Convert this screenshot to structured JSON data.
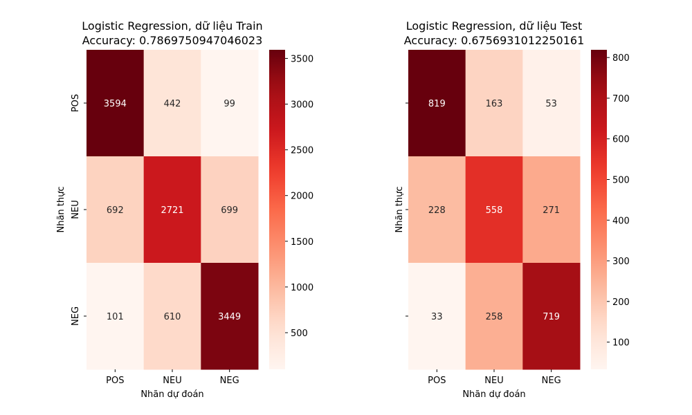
{
  "chart_data": [
    {
      "type": "heatmap",
      "title": "Logistic Regression, dữ liệu Train",
      "subtitle": "Accuracy: 0.7869750947046023",
      "xlabel": "Nhãn dự đoán",
      "ylabel": "Nhãn thực",
      "x_categories": [
        "POS",
        "NEU",
        "NEG"
      ],
      "y_categories": [
        "POS",
        "NEU",
        "NEG"
      ],
      "show_y_tick_labels": true,
      "values": [
        [
          3594,
          442,
          99
        ],
        [
          692,
          2721,
          699
        ],
        [
          101,
          610,
          3449
        ]
      ],
      "colorbar": {
        "colormap": "Reds",
        "range": [
          99,
          3594
        ],
        "ticks": [
          500,
          1000,
          1500,
          2000,
          2500,
          3000,
          3500
        ]
      }
    },
    {
      "type": "heatmap",
      "title": "Logistic Regression, dữ liệu Test",
      "subtitle": "Accuracy: 0.6756931012250161",
      "xlabel": "Nhãn dự đoán",
      "ylabel": "Nhãn thực",
      "x_categories": [
        "POS",
        "NEU",
        "NEG"
      ],
      "y_categories": [
        "POS",
        "NEU",
        "NEG"
      ],
      "show_y_tick_labels": false,
      "values": [
        [
          819,
          163,
          53
        ],
        [
          228,
          558,
          271
        ],
        [
          33,
          258,
          719
        ]
      ],
      "colorbar": {
        "colormap": "Reds",
        "range": [
          33,
          819
        ],
        "ticks": [
          100,
          200,
          300,
          400,
          500,
          600,
          700,
          800
        ]
      }
    }
  ]
}
